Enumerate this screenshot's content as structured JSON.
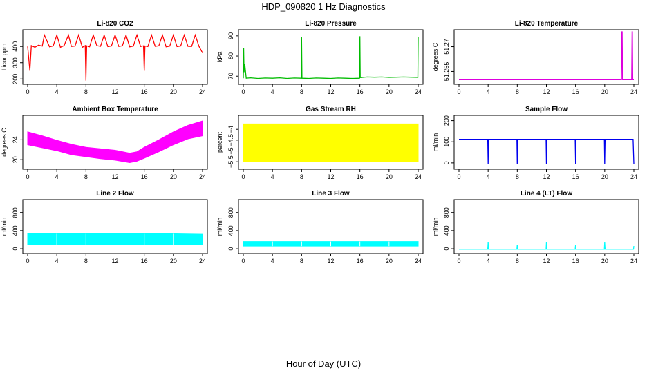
{
  "page": {
    "title": "HDP_090820  1 Hz Diagnostics",
    "xlabel": "Hour of Day (UTC)"
  },
  "chart_data": [
    {
      "id": "co2",
      "type": "line",
      "title": "Li-820 CO2",
      "xlabel": "",
      "ylabel": "Licor ppm",
      "color": "#ff0000",
      "xlim": [
        0,
        24
      ],
      "ylim": [
        180,
        490
      ],
      "xticks": [
        0,
        4,
        8,
        12,
        16,
        20,
        24
      ],
      "yticks": [
        200,
        300,
        400
      ],
      "series": [
        {
          "x": [
            0,
            0.3,
            0.5,
            1.0,
            1.5,
            2.0,
            2.3,
            3.0,
            3.5,
            4.0,
            4.5,
            5.0,
            5.6,
            6.0,
            6.5,
            7.0,
            7.5,
            7.9,
            8.0,
            8.1,
            8.5,
            9.0,
            9.5,
            10.0,
            10.5,
            11.0,
            11.5,
            12.0,
            12.5,
            13.0,
            13.5,
            14.0,
            14.5,
            15.0,
            15.5,
            15.9,
            16.0,
            16.1,
            16.5,
            17.0,
            17.5,
            18.0,
            18.5,
            19.0,
            19.5,
            20.0,
            20.5,
            21.0,
            21.5,
            22.0,
            22.5,
            23.0,
            23.5,
            24.0
          ],
          "y": [
            400,
            250,
            405,
            395,
            408,
            402,
            470,
            398,
            403,
            470,
            395,
            405,
            470,
            400,
            402,
            470,
            395,
            405,
            190,
            404,
            398,
            470,
            405,
            401,
            470,
            399,
            403,
            470,
            400,
            404,
            470,
            398,
            402,
            470,
            400,
            404,
            250,
            403,
            399,
            470,
            401,
            404,
            470,
            398,
            402,
            470,
            399,
            403,
            470,
            401,
            400,
            470,
            402,
            360
          ]
        }
      ]
    },
    {
      "id": "pressure",
      "type": "line",
      "title": "Li-820 Pressure",
      "xlabel": "",
      "ylabel": "kPa",
      "color": "#00bb00",
      "xlim": [
        0,
        24
      ],
      "ylim": [
        67,
        92
      ],
      "xticks": [
        0,
        4,
        8,
        12,
        16,
        20,
        24
      ],
      "yticks": [
        70,
        80,
        90
      ],
      "series": [
        {
          "x": [
            0,
            0.05,
            0.1,
            0.2,
            0.4,
            1,
            2,
            3,
            4,
            5,
            6,
            7,
            7.95,
            8.0,
            8.05,
            9,
            10,
            11,
            12,
            13,
            14,
            15,
            15.95,
            16.0,
            16.05,
            17,
            18,
            19,
            20,
            21,
            22,
            23,
            23.95,
            24.0
          ],
          "y": [
            69,
            84,
            72,
            76,
            69,
            69.2,
            68.9,
            69.1,
            69.0,
            69.2,
            68.9,
            69.1,
            69.0,
            89.5,
            69.0,
            68.9,
            69.1,
            69.0,
            68.9,
            69.1,
            69.0,
            68.9,
            69.0,
            89.8,
            69.3,
            69.6,
            69.5,
            69.6,
            69.4,
            69.5,
            69.6,
            69.5,
            69.4,
            89.5
          ]
        }
      ]
    },
    {
      "id": "licor_temp",
      "type": "line",
      "title": "Li-820 Temperature",
      "xlabel": "",
      "ylabel": "degrees C",
      "color": "#dd00dd",
      "xlim": [
        0,
        24
      ],
      "ylim": [
        51.2485,
        51.279
      ],
      "xticks": [
        0,
        4,
        8,
        12,
        16,
        20,
        24
      ],
      "yticks": [
        51.255,
        51.27
      ],
      "series": [
        {
          "x": [
            0,
            22.3,
            22.35,
            22.4,
            22.45,
            23.7,
            23.75,
            23.8,
            23.85,
            24.0
          ],
          "y": [
            51.25,
            51.25,
            51.279,
            51.279,
            51.25,
            51.25,
            51.279,
            51.279,
            51.25,
            51.25
          ]
        }
      ]
    },
    {
      "id": "box_temp",
      "type": "area",
      "title": "Ambient Box Temperature",
      "xlabel": "",
      "ylabel": "degrees C",
      "color": "#ff00ff",
      "xlim": [
        0,
        24
      ],
      "ylim": [
        18.5,
        28.5
      ],
      "xticks": [
        0,
        4,
        8,
        12,
        16,
        20,
        24
      ],
      "yticks": [
        20,
        24
      ],
      "series": [
        {
          "name": "upper",
          "x": [
            0,
            2,
            4,
            6,
            8,
            10,
            12,
            14,
            15,
            16,
            18,
            20,
            22,
            24
          ],
          "y": [
            25.6,
            24.8,
            23.9,
            23.1,
            22.5,
            22.2,
            21.9,
            21.3,
            21.6,
            22.5,
            24.0,
            25.6,
            26.9,
            27.8
          ]
        },
        {
          "name": "lower",
          "x": [
            0,
            2,
            4,
            6,
            8,
            10,
            12,
            14,
            15,
            16,
            18,
            20,
            22,
            24
          ],
          "y": [
            23.0,
            22.4,
            21.8,
            21.0,
            20.6,
            20.2,
            19.9,
            19.4,
            19.7,
            20.3,
            21.6,
            23.0,
            24.2,
            24.8
          ]
        }
      ]
    },
    {
      "id": "rh",
      "type": "area",
      "title": "Gas Stream RH",
      "xlabel": "",
      "ylabel": "percent",
      "color": "#ffff00",
      "xlim": [
        0,
        24
      ],
      "ylim": [
        -5.75,
        -3.45
      ],
      "xticks": [
        0,
        4,
        8,
        12,
        16,
        20,
        24
      ],
      "yticks": [
        -5.5,
        -5.0,
        -4.5,
        -4.0
      ],
      "series": [
        {
          "name": "upper",
          "x": [
            0,
            24
          ],
          "y": [
            -3.75,
            -3.75
          ]
        },
        {
          "name": "lower",
          "x": [
            0,
            24
          ],
          "y": [
            -5.5,
            -5.5
          ]
        }
      ]
    },
    {
      "id": "sample_flow",
      "type": "line",
      "title": "Sample Flow",
      "xlabel": "",
      "ylabel": "ml/min",
      "color": "#0000ee",
      "xlim": [
        0,
        24
      ],
      "ylim": [
        -20,
        215
      ],
      "xticks": [
        0,
        4,
        8,
        12,
        16,
        20,
        24
      ],
      "yticks": [
        0,
        100,
        200
      ],
      "series": [
        {
          "x": [
            0,
            3.95,
            4.0,
            4.05,
            7.95,
            8.0,
            8.05,
            11.95,
            12.0,
            12.05,
            15.95,
            16.0,
            16.05,
            19.95,
            20.0,
            20.05,
            23.9,
            24.0
          ],
          "y": [
            112,
            112,
            -5,
            112,
            112,
            -5,
            112,
            112,
            -5,
            112,
            112,
            -5,
            112,
            112,
            -5,
            112,
            112,
            -5
          ]
        }
      ]
    },
    {
      "id": "line2_flow",
      "type": "area",
      "title": "Line 2 Flow",
      "xlabel": "",
      "ylabel": "ml/min",
      "color": "#00ffff",
      "xlim": [
        0,
        24
      ],
      "ylim": [
        -60,
        1040
      ],
      "xticks": [
        0,
        4,
        8,
        12,
        16,
        20,
        24
      ],
      "yticks": [
        0,
        400,
        800
      ],
      "series": [
        {
          "name": "upper",
          "x": [
            0,
            4,
            8,
            12,
            16,
            20,
            24
          ],
          "y": [
            330,
            340,
            340,
            340,
            340,
            330,
            320
          ]
        },
        {
          "name": "lower",
          "x": [
            0,
            24
          ],
          "y": [
            90,
            90
          ]
        }
      ]
    },
    {
      "id": "line3_flow",
      "type": "area",
      "title": "Line 3 Flow",
      "xlabel": "",
      "ylabel": "ml/min",
      "color": "#00ffff",
      "xlim": [
        0,
        24
      ],
      "ylim": [
        -60,
        1040
      ],
      "xticks": [
        0,
        4,
        8,
        12,
        16,
        20,
        24
      ],
      "yticks": [
        0,
        400,
        800
      ],
      "series": [
        {
          "name": "upper",
          "x": [
            0,
            24
          ],
          "y": [
            160,
            160
          ]
        },
        {
          "name": "lower",
          "x": [
            0,
            24
          ],
          "y": [
            60,
            60
          ]
        }
      ]
    },
    {
      "id": "line4_flow",
      "type": "line",
      "title": "Line 4 (LT) Flow",
      "xlabel": "",
      "ylabel": "ml/min",
      "color": "#00ffff",
      "xlim": [
        0,
        24
      ],
      "ylim": [
        -60,
        1040
      ],
      "xticks": [
        0,
        4,
        8,
        12,
        16,
        20,
        24
      ],
      "yticks": [
        0,
        400,
        800
      ],
      "series": [
        {
          "x": [
            0,
            3.95,
            4.0,
            4.05,
            7.95,
            8.0,
            8.05,
            11.95,
            12.0,
            12.05,
            15.95,
            16.0,
            16.05,
            19.95,
            20.0,
            20.05,
            23.95,
            24.0
          ],
          "y": [
            -10,
            -10,
            140,
            -10,
            -10,
            90,
            -10,
            -10,
            140,
            -10,
            -10,
            90,
            -10,
            -10,
            140,
            -10,
            -10,
            60
          ]
        }
      ]
    }
  ]
}
